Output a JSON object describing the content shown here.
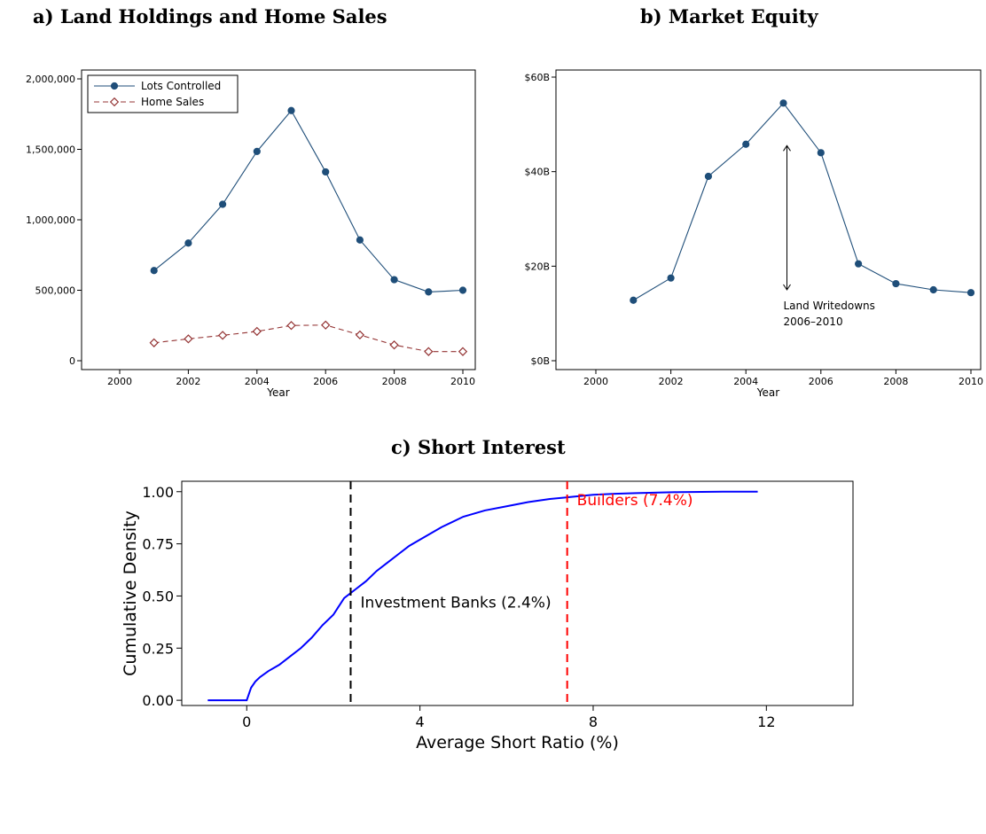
{
  "titles": {
    "a": "a) Land Holdings and Home Sales",
    "b": "b) Market Equity",
    "c": "c) Short Interest"
  },
  "chart_data": [
    {
      "id": "a",
      "type": "line",
      "title": "a) Land Holdings and Home Sales",
      "xlabel": "Year",
      "ylabel": "",
      "xlim": [
        2000,
        2010
      ],
      "ylim": [
        0,
        2000000
      ],
      "x_ticks": [
        "2000",
        "2002",
        "2004",
        "2006",
        "2008",
        "2010"
      ],
      "y_ticks": [
        "0",
        "500,000",
        "1,000,000",
        "1,500,000",
        "2,000,000"
      ],
      "x": [
        2001,
        2002,
        2003,
        2004,
        2005,
        2006,
        2007,
        2008,
        2009,
        2010
      ],
      "series": [
        {
          "name": "Lots Controlled",
          "color": "#1f4e79",
          "marker": "circle",
          "style": "solid",
          "values": [
            640000,
            835000,
            1110000,
            1485000,
            1775000,
            1340000,
            857000,
            575000,
            488000,
            500000
          ]
        },
        {
          "name": "Home Sales",
          "color": "#943434",
          "marker": "diamond",
          "style": "dashed",
          "values": [
            127000,
            155000,
            180000,
            208000,
            250000,
            253000,
            183000,
            112000,
            65000,
            65000
          ]
        }
      ],
      "legend": "top-left",
      "grid": false
    },
    {
      "id": "b",
      "type": "line",
      "title": "b) Market Equity",
      "xlabel": "Year",
      "ylabel": "",
      "xlim": [
        2000,
        2010
      ],
      "ylim": [
        0,
        60
      ],
      "x_ticks": [
        "2000",
        "2002",
        "2004",
        "2006",
        "2008",
        "2010"
      ],
      "y_ticks": [
        "$0B",
        "$20B",
        "$40B",
        "$60B"
      ],
      "x": [
        2001,
        2002,
        2003,
        2004,
        2005,
        2006,
        2007,
        2008,
        2009,
        2010
      ],
      "series": [
        {
          "color": "#1f4e79",
          "marker": "circle",
          "style": "solid",
          "values": [
            12.8,
            17.5,
            39.0,
            45.8,
            54.5,
            44.0,
            20.5,
            16.3,
            15.0,
            14.4
          ]
        }
      ],
      "annotation": {
        "lines": [
          "Land Writedowns",
          "2006–2010"
        ],
        "arrow_x": 2005,
        "arrow_y": [
          15,
          45.5
        ]
      },
      "grid": false
    },
    {
      "id": "c",
      "type": "line",
      "title": "c) Short Interest",
      "xlabel": "Average Short Ratio (%)",
      "ylabel": "Cumulative Density",
      "xlim": [
        -1.5,
        14
      ],
      "ylim": [
        -0.025,
        1.05
      ],
      "x_ticks": [
        "0",
        "4",
        "8",
        "12"
      ],
      "y_ticks": [
        "0.00",
        "0.25",
        "0.50",
        "0.75",
        "1.00"
      ],
      "series": [
        {
          "color": "#0000ff",
          "style": "solid",
          "points": [
            [
              -0.9,
              0
            ],
            [
              0.0,
              0
            ],
            [
              0.05,
              0.03
            ],
            [
              0.1,
              0.06
            ],
            [
              0.2,
              0.09
            ],
            [
              0.3,
              0.11
            ],
            [
              0.5,
              0.14
            ],
            [
              0.75,
              0.17
            ],
            [
              1.0,
              0.21
            ],
            [
              1.25,
              0.25
            ],
            [
              1.5,
              0.3
            ],
            [
              1.75,
              0.36
            ],
            [
              2.0,
              0.41
            ],
            [
              2.25,
              0.49
            ],
            [
              2.5,
              0.53
            ],
            [
              2.75,
              0.57
            ],
            [
              3.0,
              0.62
            ],
            [
              3.25,
              0.66
            ],
            [
              3.5,
              0.7
            ],
            [
              3.75,
              0.74
            ],
            [
              4.0,
              0.77
            ],
            [
              4.5,
              0.83
            ],
            [
              5.0,
              0.88
            ],
            [
              5.5,
              0.91
            ],
            [
              6.0,
              0.93
            ],
            [
              6.5,
              0.95
            ],
            [
              7.0,
              0.965
            ],
            [
              7.5,
              0.975
            ],
            [
              8.0,
              0.985
            ],
            [
              8.5,
              0.99
            ],
            [
              9.0,
              0.993
            ],
            [
              9.5,
              0.996
            ],
            [
              10.0,
              0.998
            ],
            [
              11.0,
              1.0
            ],
            [
              11.8,
              1.0
            ]
          ]
        }
      ],
      "reference_lines": [
        {
          "x": 2.4,
          "label": "Investment Banks (2.4%)",
          "color": "#000000",
          "label_y": 0.47
        },
        {
          "x": 7.4,
          "label": "Builders (7.4%)",
          "color": "#ff0000",
          "label_y": 0.96
        }
      ],
      "grid": false
    }
  ]
}
